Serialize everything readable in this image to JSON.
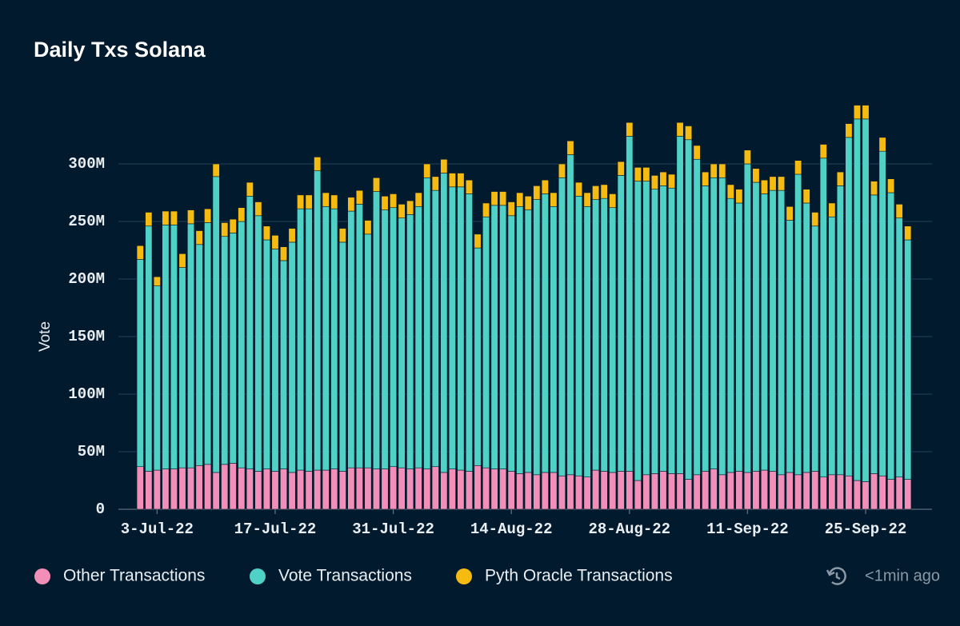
{
  "chart_data": {
    "type": "stacked_bar",
    "title": "Daily Txs Solana",
    "ylabel": "Vote",
    "annotations": [
      "<1min ago"
    ],
    "categories": [
      null,
      null,
      "3-Jul-22",
      null,
      null,
      null,
      null,
      null,
      null,
      null,
      null,
      null,
      null,
      null,
      null,
      null,
      "17-Jul-22",
      null,
      null,
      null,
      null,
      null,
      null,
      null,
      null,
      null,
      null,
      null,
      null,
      null,
      "31-Jul-22",
      null,
      null,
      null,
      null,
      null,
      null,
      null,
      null,
      null,
      null,
      null,
      null,
      null,
      "14-Aug-22",
      null,
      null,
      null,
      null,
      null,
      null,
      null,
      null,
      null,
      null,
      null,
      null,
      null,
      "28-Aug-22",
      null,
      null,
      null,
      null,
      null,
      null,
      null,
      null,
      null,
      null,
      null,
      null,
      null,
      "11-Sep-22",
      null,
      null,
      null,
      null,
      null,
      null,
      null,
      null,
      null,
      null,
      null,
      null,
      null,
      "25-Sep-22",
      null,
      null,
      null,
      null,
      null
    ],
    "series": [
      {
        "name": "Other Transactions",
        "color": "#f28fb8",
        "values": [
          37000000.0,
          33000000.0,
          34000000.0,
          35000000.0,
          35000000.0,
          36000000.0,
          36000000.0,
          38000000.0,
          39000000.0,
          32000000.0,
          39000000.0,
          40000000.0,
          36000000.0,
          35000000.0,
          33000000.0,
          35000000.0,
          33000000.0,
          35000000.0,
          32000000.0,
          34000000.0,
          33000000.0,
          34000000.0,
          34000000.0,
          35000000.0,
          33000000.0,
          36000000.0,
          36000000.0,
          36000000.0,
          35000000.0,
          35000000.0,
          37000000.0,
          36000000.0,
          35000000.0,
          36000000.0,
          35000000.0,
          37000000.0,
          32000000.0,
          35000000.0,
          34000000.0,
          33000000.0,
          38000000.0,
          36000000.0,
          35000000.0,
          35000000.0,
          33000000.0,
          31000000.0,
          32000000.0,
          30000000.0,
          32000000.0,
          32000000.0,
          29000000.0,
          30000000.0,
          29000000.0,
          28000000.0,
          34000000.0,
          33000000.0,
          32000000.0,
          33000000.0,
          33000000.0,
          25000000.0,
          30000000.0,
          31000000.0,
          33000000.0,
          31000000.0,
          31000000.0,
          26000000.0,
          30000000.0,
          33000000.0,
          35000000.0,
          30000000.0,
          32000000.0,
          33000000.0,
          32000000.0,
          33000000.0,
          34000000.0,
          33000000.0,
          30000000.0,
          32000000.0,
          30000000.0,
          32000000.0,
          33000000.0,
          28000000.0,
          30000000.0,
          30000000.0,
          29000000.0,
          25000000.0,
          24000000.0,
          31000000.0,
          29000000.0,
          26000000.0,
          28000000.0,
          26000000.0
        ]
      },
      {
        "name": "Vote Transactions",
        "color": "#4fd1c5",
        "values": [
          180000000.0,
          213000000.0,
          160000000.0,
          212000000.0,
          212000000.0,
          174000000.0,
          212000000.0,
          192000000.0,
          210000000.0,
          257000000.0,
          198000000.0,
          200000000.0,
          214000000.0,
          237000000.0,
          222000000.0,
          199000000.0,
          193000000.0,
          181000000.0,
          200000000.0,
          227000000.0,
          228000000.0,
          260000000.0,
          229000000.0,
          226000000.0,
          199000000.0,
          223000000.0,
          229000000.0,
          203000000.0,
          241000000.0,
          225000000.0,
          225000000.0,
          217000000.0,
          221000000.0,
          227000000.0,
          253000000.0,
          240000000.0,
          260000000.0,
          245000000.0,
          246000000.0,
          241000000.0,
          189000000.0,
          218000000.0,
          229000000.0,
          229000000.0,
          222000000.0,
          232000000.0,
          228000000.0,
          239000000.0,
          242000000.0,
          231000000.0,
          259000000.0,
          278000000.0,
          243000000.0,
          235000000.0,
          235000000.0,
          237000000.0,
          230000000.0,
          257000000.0,
          291000000.0,
          260000000.0,
          255000000.0,
          247000000.0,
          248000000.0,
          248000000.0,
          293000000.0,
          295000000.0,
          274000000.0,
          248000000.0,
          253000000.0,
          258000000.0,
          238000000.0,
          233000000.0,
          268000000.0,
          251000000.0,
          240000000.0,
          244000000.0,
          247000000.0,
          219000000.0,
          261000000.0,
          234000000.0,
          213000000.0,
          277000000.0,
          224000000.0,
          251000000.0,
          294000000.0,
          314000000.0,
          315000000.0,
          242000000.0,
          282000000.0,
          249000000.0,
          225000000.0,
          208000000.0
        ]
      },
      {
        "name": "Pyth Oracle Transactions",
        "color": "#f6bb11",
        "values": [
          12000000.0,
          12000000.0,
          8000000.0,
          12000000.0,
          12000000.0,
          12000000.0,
          12000000.0,
          12000000.0,
          12000000.0,
          11000000.0,
          12000000.0,
          12000000.0,
          12000000.0,
          12000000.0,
          12000000.0,
          12000000.0,
          12000000.0,
          12000000.0,
          12000000.0,
          12000000.0,
          12000000.0,
          12000000.0,
          12000000.0,
          12000000.0,
          12000000.0,
          12000000.0,
          12000000.0,
          12000000.0,
          12000000.0,
          12000000.0,
          12000000.0,
          12000000.0,
          12000000.0,
          12000000.0,
          12000000.0,
          12000000.0,
          12000000.0,
          12000000.0,
          12000000.0,
          12000000.0,
          12000000.0,
          12000000.0,
          12000000.0,
          12000000.0,
          12000000.0,
          12000000.0,
          12000000.0,
          12000000.0,
          12000000.0,
          12000000.0,
          12000000.0,
          12000000.0,
          12000000.0,
          12000000.0,
          12000000.0,
          12000000.0,
          12000000.0,
          12000000.0,
          12000000.0,
          12000000.0,
          12000000.0,
          12000000.0,
          12000000.0,
          12000000.0,
          12000000.0,
          12000000.0,
          12000000.0,
          12000000.0,
          12000000.0,
          12000000.0,
          12000000.0,
          12000000.0,
          12000000.0,
          12000000.0,
          12000000.0,
          12000000.0,
          12000000.0,
          12000000.0,
          12000000.0,
          12000000.0,
          12000000.0,
          12000000.0,
          12000000.0,
          12000000.0,
          12000000.0,
          12000000.0,
          12000000.0,
          12000000.0,
          12000000.0,
          12000000.0,
          12000000.0,
          12000000.0
        ]
      }
    ],
    "ylim": [
      0,
      350000000.0
    ],
    "yticks": [
      0,
      {
        "value": 50000000.0,
        "label": "50M"
      },
      {
        "value": 100000000.0,
        "label": "100M"
      },
      {
        "value": 150000000.0,
        "label": "150M"
      },
      {
        "value": 200000000.0,
        "label": "200M"
      },
      {
        "value": 250000000.0,
        "label": "250M"
      },
      {
        "value": 300000000.0,
        "label": "300M"
      }
    ],
    "grid": true
  }
}
